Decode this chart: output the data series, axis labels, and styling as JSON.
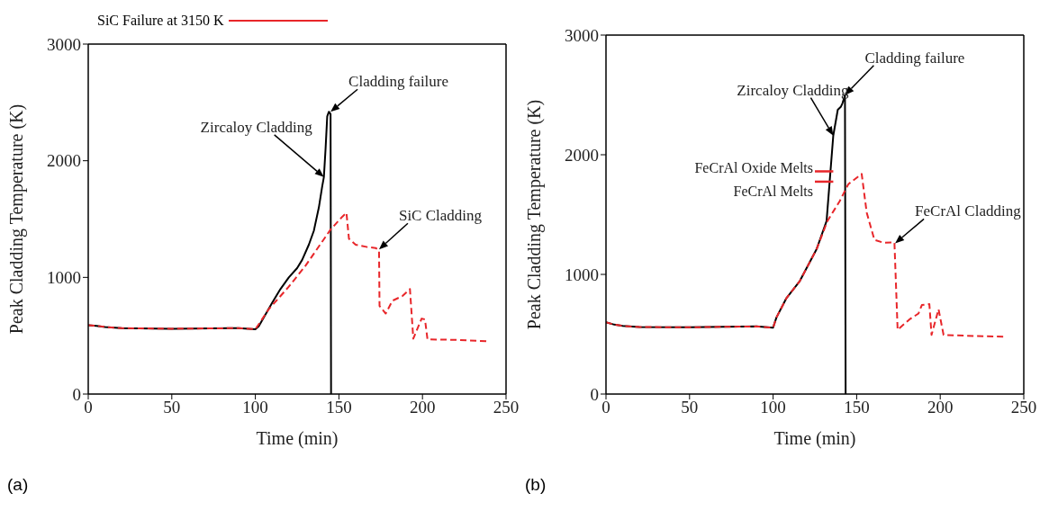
{
  "chart_data": [
    {
      "type": "line",
      "xlabel": "Time (min)",
      "ylabel": "Peak Cladding Temperature (K)",
      "xlim": [
        0,
        250
      ],
      "xticks": [
        0,
        50,
        100,
        150,
        200,
        250
      ],
      "ylim": [
        0,
        3000
      ],
      "yticks": [
        0,
        1000,
        2000,
        3000
      ],
      "series": [
        {
          "color": "#000000",
          "line_style": "solid",
          "x": [
            0,
            5,
            10,
            20,
            50,
            90,
            100,
            102,
            106,
            110,
            115,
            120,
            125,
            128,
            132,
            135,
            138,
            140,
            141,
            142,
            143,
            144,
            145,
            145.3
          ],
          "values": [
            590,
            585,
            575,
            565,
            560,
            565,
            555,
            580,
            680,
            780,
            900,
            1000,
            1080,
            1150,
            1280,
            1400,
            1600,
            1780,
            1860,
            2100,
            2380,
            2420,
            2400,
            0
          ]
        },
        {
          "color": "#e8262a",
          "line_style": "dashed",
          "x": [
            0,
            5,
            10,
            20,
            50,
            90,
            100,
            108,
            120,
            130,
            145,
            152,
            154.5,
            156,
            160,
            167,
            172,
            174,
            174.3,
            178,
            182,
            188,
            192.5,
            194.5,
            199.5,
            201.5,
            203,
            220,
            239
          ],
          "values": [
            590,
            585,
            575,
            565,
            560,
            565,
            555,
            727,
            920,
            1100,
            1410,
            1520,
            1554,
            1331,
            1280,
            1260,
            1252,
            1230,
            755,
            690,
            800,
            840,
            900,
            475,
            647,
            640,
            468,
            465,
            453
          ]
        }
      ],
      "annotations": [
        {
          "text": "Cladding failure",
          "x": 145,
          "y": 2420
        },
        {
          "text": "Zircaloy Cladding",
          "x": 141,
          "y": 1860
        },
        {
          "text": "SiC Cladding",
          "x": 174,
          "y": 1240
        },
        "SiC Failure at 3150 K",
        "(a)"
      ]
    },
    {
      "type": "line",
      "xlabel": "Time (min)",
      "ylabel": "Peak Cladding Temperature (K)",
      "xlim": [
        0,
        250
      ],
      "xticks": [
        0,
        50,
        100,
        150,
        200,
        250
      ],
      "ylim": [
        0,
        3000
      ],
      "yticks": [
        0,
        1000,
        2000,
        3000
      ],
      "series": [
        {
          "color": "#000000",
          "line_style": "solid",
          "x": [
            0,
            5,
            10,
            20,
            50,
            90,
            100,
            102,
            108,
            116,
            126,
            132,
            136,
            138.7,
            140.5,
            141.5,
            143,
            143.4
          ],
          "values": [
            600,
            580,
            570,
            560,
            558,
            565,
            555,
            640,
            802,
            945,
            1210,
            1446,
            2160,
            2376,
            2400,
            2430,
            2498,
            0
          ]
        },
        {
          "color": "#e8262a",
          "line_style": "dashed",
          "x": [
            0,
            5,
            10,
            20,
            50,
            90,
            100,
            102,
            108,
            116,
            126,
            132.5,
            139.8,
            145,
            153,
            156,
            160.6,
            166,
            172.6,
            174.5,
            181.5,
            187,
            189,
            193.5,
            194.8,
            199,
            202,
            220,
            238.5
          ],
          "values": [
            600,
            580,
            570,
            560,
            558,
            565,
            555,
            640,
            802,
            945,
            1210,
            1446,
            1611,
            1754,
            1840,
            1517,
            1289,
            1265,
            1267,
            537,
            623,
            673,
            744,
            752,
            494,
            709,
            494,
            485,
            480
          ]
        }
      ],
      "ref_lines": [
        {
          "axis": "y",
          "value": 1861,
          "label": "FeCrAl Oxide Melts",
          "color": "#e8262a"
        },
        {
          "axis": "y",
          "value": 1775,
          "label": "FeCrAl Melts",
          "color": "#e8262a"
        }
      ],
      "annotations": [
        {
          "text": "Cladding failure",
          "x": 143,
          "y": 2498
        },
        {
          "text": "Zircaloy Cladding",
          "x": 136,
          "y": 2160
        },
        {
          "text": "FeCrAl Cladding",
          "x": 173,
          "y": 1260
        },
        "(b)"
      ]
    }
  ]
}
